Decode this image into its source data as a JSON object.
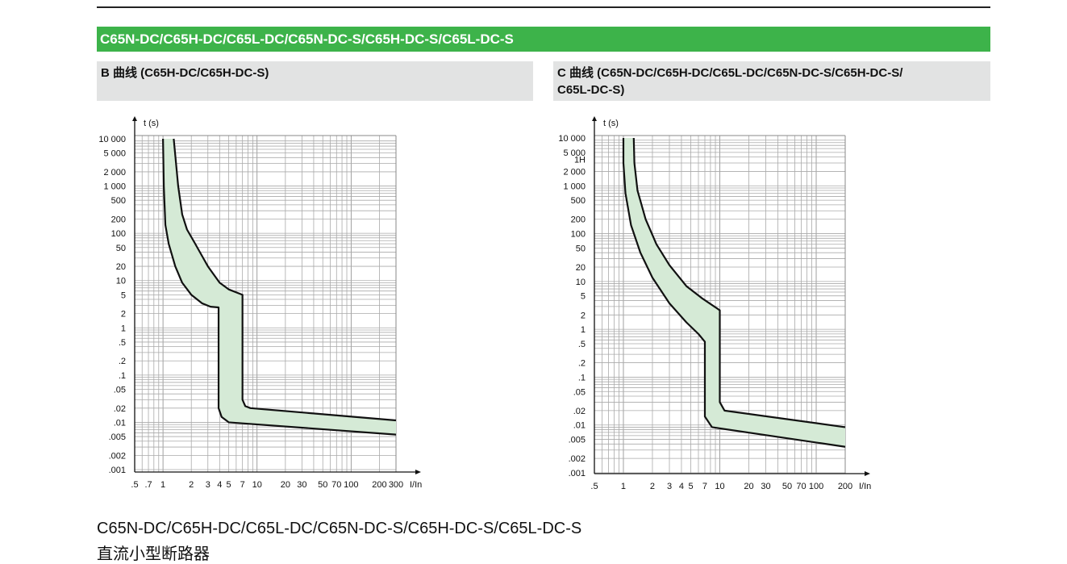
{
  "section_title": "C65N-DC/C65H-DC/C65L-DC/C65N-DC-S/C65H-DC-S/C65L-DC-S",
  "left_header": "B 曲线 (C65H-DC/C65H-DC-S)",
  "right_header_line1": "C 曲线 (C65N-DC/C65H-DC/C65L-DC/C65N-DC-S/C65H-DC-S/",
  "right_header_line2": "C65L-DC-S)",
  "bottom_title": "C65N-DC/C65H-DC/C65L-DC/C65N-DC-S/C65H-DC-S/C65L-DC-S",
  "bottom_subtitle": "直流小型断路器",
  "colors": {
    "green": "#3db34a",
    "band": "#d5ead6",
    "header_bg": "#e2e3e3"
  },
  "chart_data": [
    {
      "type": "area",
      "title": "B 曲线",
      "ylabel": "t (s)",
      "xlabel": "I/In",
      "xscale": "log",
      "yscale": "log",
      "xlim": [
        0.5,
        300
      ],
      "ylim": [
        0.001,
        10000
      ],
      "grid": true,
      "x_ticks": [
        {
          "v": 0.5,
          "l": ".5"
        },
        {
          "v": 0.7,
          "l": ".7"
        },
        {
          "v": 1,
          "l": "1"
        },
        {
          "v": 2,
          "l": "2"
        },
        {
          "v": 3,
          "l": "3"
        },
        {
          "v": 4,
          "l": "4"
        },
        {
          "v": 5,
          "l": "5"
        },
        {
          "v": 7,
          "l": "7"
        },
        {
          "v": 10,
          "l": "10"
        },
        {
          "v": 20,
          "l": "20"
        },
        {
          "v": 30,
          "l": "30"
        },
        {
          "v": 50,
          "l": "50"
        },
        {
          "v": 70,
          "l": "70"
        },
        {
          "v": 100,
          "l": "100"
        },
        {
          "v": 200,
          "l": "200"
        },
        {
          "v": 300,
          "l": "300"
        }
      ],
      "y_ticks": [
        {
          "v": 10000,
          "l": "10 000"
        },
        {
          "v": 5000,
          "l": "5 000"
        },
        {
          "v": 2000,
          "l": "2 000"
        },
        {
          "v": 1000,
          "l": "1 000"
        },
        {
          "v": 500,
          "l": "500"
        },
        {
          "v": 200,
          "l": "200"
        },
        {
          "v": 100,
          "l": "100"
        },
        {
          "v": 50,
          "l": "50"
        },
        {
          "v": 20,
          "l": "20"
        },
        {
          "v": 10,
          "l": "10"
        },
        {
          "v": 5,
          "l": "5"
        },
        {
          "v": 2,
          "l": "2"
        },
        {
          "v": 1,
          "l": "1"
        },
        {
          "v": 0.5,
          "l": ".5"
        },
        {
          "v": 0.2,
          "l": ".2"
        },
        {
          "v": 0.1,
          "l": ".1"
        },
        {
          "v": 0.05,
          "l": ".05"
        },
        {
          "v": 0.02,
          "l": ".02"
        },
        {
          "v": 0.01,
          "l": ".01"
        },
        {
          "v": 0.005,
          "l": ".005"
        },
        {
          "v": 0.002,
          "l": ".002"
        },
        {
          "v": 0.001,
          "l": ".001"
        }
      ],
      "series": [
        {
          "name": "lower",
          "points": [
            [
              1.0,
              10000
            ],
            [
              1.02,
              1000
            ],
            [
              1.06,
              150
            ],
            [
              1.15,
              60
            ],
            [
              1.35,
              20
            ],
            [
              1.6,
              9
            ],
            [
              2,
              5
            ],
            [
              2.6,
              3.3
            ],
            [
              3.2,
              2.8
            ],
            [
              3.9,
              2.7
            ],
            [
              3.9,
              0.02
            ],
            [
              4.2,
              0.013
            ],
            [
              5,
              0.01
            ],
            [
              300,
              0.0055
            ]
          ]
        },
        {
          "name": "upper",
          "points": [
            [
              1.3,
              10000
            ],
            [
              1.45,
              1000
            ],
            [
              1.6,
              250
            ],
            [
              1.8,
              120
            ],
            [
              2.2,
              60
            ],
            [
              3,
              20
            ],
            [
              4,
              9
            ],
            [
              5,
              6.5
            ],
            [
              7,
              5
            ],
            [
              7,
              0.03
            ],
            [
              7.5,
              0.022
            ],
            [
              8.5,
              0.02
            ],
            [
              300,
              0.011
            ]
          ]
        }
      ]
    },
    {
      "type": "area",
      "title": "C 曲线",
      "ylabel": "t (s)",
      "xlabel": "I/In",
      "xscale": "log",
      "yscale": "log",
      "xlim": [
        0.5,
        200
      ],
      "ylim": [
        0.001,
        10000
      ],
      "grid": true,
      "x_ticks": [
        {
          "v": 0.5,
          "l": ".5"
        },
        {
          "v": 1,
          "l": "1"
        },
        {
          "v": 2,
          "l": "2"
        },
        {
          "v": 3,
          "l": "3"
        },
        {
          "v": 4,
          "l": "4"
        },
        {
          "v": 5,
          "l": "5"
        },
        {
          "v": 7,
          "l": "7"
        },
        {
          "v": 10,
          "l": "10"
        },
        {
          "v": 20,
          "l": "20"
        },
        {
          "v": 30,
          "l": "30"
        },
        {
          "v": 50,
          "l": "50"
        },
        {
          "v": 70,
          "l": "70"
        },
        {
          "v": 100,
          "l": "100"
        },
        {
          "v": 200,
          "l": "200"
        }
      ],
      "y_ticks": [
        {
          "v": 10000,
          "l": "10 000"
        },
        {
          "v": 5000,
          "l": "5 000"
        },
        {
          "v": 3600,
          "l": "1H"
        },
        {
          "v": 2000,
          "l": "2 000"
        },
        {
          "v": 1000,
          "l": "1 000"
        },
        {
          "v": 500,
          "l": "500"
        },
        {
          "v": 200,
          "l": "200"
        },
        {
          "v": 100,
          "l": "100"
        },
        {
          "v": 50,
          "l": "50"
        },
        {
          "v": 20,
          "l": "20"
        },
        {
          "v": 10,
          "l": "10"
        },
        {
          "v": 5,
          "l": "5"
        },
        {
          "v": 2,
          "l": "2"
        },
        {
          "v": 1,
          "l": "1"
        },
        {
          "v": 0.5,
          "l": ".5"
        },
        {
          "v": 0.2,
          "l": ".2"
        },
        {
          "v": 0.1,
          "l": ".1"
        },
        {
          "v": 0.05,
          "l": ".05"
        },
        {
          "v": 0.02,
          "l": ".02"
        },
        {
          "v": 0.01,
          "l": ".01"
        },
        {
          "v": 0.005,
          "l": ".005"
        },
        {
          "v": 0.002,
          "l": ".002"
        },
        {
          "v": 0.001,
          "l": ".001"
        }
      ],
      "series": [
        {
          "name": "lower",
          "points": [
            [
              1.0,
              10000
            ],
            [
              1.0,
              3000
            ],
            [
              1.05,
              700
            ],
            [
              1.2,
              150
            ],
            [
              1.5,
              40
            ],
            [
              2,
              12
            ],
            [
              3,
              3.5
            ],
            [
              4.5,
              1.4
            ],
            [
              6,
              0.8
            ],
            [
              7,
              0.55
            ],
            [
              7,
              0.015
            ],
            [
              8.3,
              0.009
            ],
            [
              200,
              0.0035
            ]
          ]
        },
        {
          "name": "upper",
          "points": [
            [
              1.28,
              10000
            ],
            [
              1.3,
              3000
            ],
            [
              1.4,
              800
            ],
            [
              1.7,
              200
            ],
            [
              2.2,
              60
            ],
            [
              3,
              22
            ],
            [
              4.5,
              8
            ],
            [
              6.5,
              4.5
            ],
            [
              10,
              2.5
            ],
            [
              10,
              0.03
            ],
            [
              11.2,
              0.02
            ],
            [
              200,
              0.009
            ]
          ]
        }
      ]
    }
  ]
}
